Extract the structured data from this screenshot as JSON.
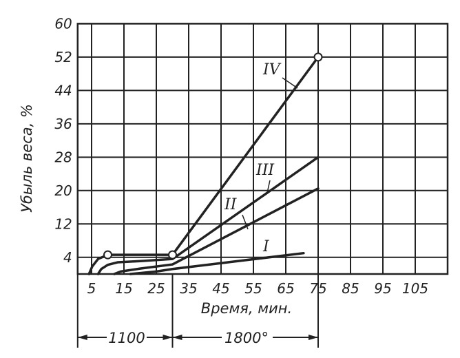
{
  "chart_data": {
    "type": "line",
    "title": "",
    "xlabel": "Время, мин.",
    "ylabel": "Убыль веса, %",
    "xlim": [
      0.7,
      115
    ],
    "ylim": [
      0,
      60
    ],
    "grid": true,
    "x_ticks": [
      "5",
      "15",
      "25",
      "35",
      "45",
      "55",
      "65",
      "75",
      "85",
      "95",
      "105"
    ],
    "y_ticks": [
      "4",
      "12",
      "20",
      "28",
      "36",
      "44",
      "52",
      "60"
    ],
    "annotations": {
      "range_1": {
        "label": "1100",
        "from": 0.7,
        "to": 30
      },
      "range_2": {
        "label": "1800°",
        "from": 30,
        "to": 75
      }
    },
    "series": [
      {
        "name": "I",
        "points": [
          [
            17,
            0
          ],
          [
            25,
            0.6
          ],
          [
            30,
            1.2
          ],
          [
            70.5,
            5
          ]
        ]
      },
      {
        "name": "II",
        "points": [
          [
            12,
            0
          ],
          [
            14,
            0.6
          ],
          [
            20,
            1.3
          ],
          [
            30,
            2.3
          ],
          [
            75,
            20.5
          ]
        ]
      },
      {
        "name": "III",
        "points": [
          [
            7,
            0
          ],
          [
            8,
            1.2
          ],
          [
            10,
            2.2
          ],
          [
            13,
            2.8
          ],
          [
            20,
            3.1
          ],
          [
            30,
            3.6
          ],
          [
            75,
            28
          ]
        ]
      },
      {
        "name": "IV",
        "points": [
          [
            4.2,
            0
          ],
          [
            5.2,
            1.8
          ],
          [
            7,
            3.6
          ],
          [
            10,
            4.6
          ],
          [
            30,
            4.6
          ],
          [
            75,
            52
          ]
        ],
        "markers": [
          [
            10,
            4.6
          ],
          [
            30,
            4.6
          ],
          [
            75,
            52
          ]
        ]
      }
    ],
    "colors": {
      "ink": "#222222",
      "background": "#ffffff"
    }
  }
}
